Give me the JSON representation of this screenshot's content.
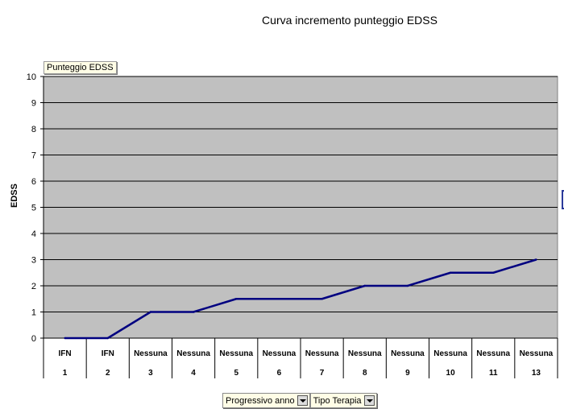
{
  "chart_data": {
    "type": "line",
    "title": "Curva incremento punteggio EDSS",
    "ylabel": "EDSS",
    "ylim": [
      0,
      10
    ],
    "yticks": [
      "0",
      "1",
      "2",
      "3",
      "4",
      "5",
      "6",
      "7",
      "8",
      "9",
      "10"
    ],
    "categories_top": [
      "IFN",
      "IFN",
      "Nessuna",
      "Nessuna",
      "Nessuna",
      "Nessuna",
      "Nessuna",
      "Nessuna",
      "Nessuna",
      "Nessuna",
      "Nessuna",
      "Nessuna"
    ],
    "categories_bottom": [
      "1",
      "2",
      "3",
      "4",
      "5",
      "6",
      "7",
      "8",
      "9",
      "10",
      "11",
      "13"
    ],
    "series": [
      {
        "values": [
          0,
          0,
          1,
          1,
          1.5,
          1.5,
          1.5,
          2,
          2,
          2.5,
          2.5,
          3
        ]
      }
    ],
    "grid": true,
    "plot_bg": "#c0c0c0",
    "line_color": "#000080"
  },
  "field_chip": "Punteggio EDSS",
  "dropdowns": [
    {
      "label": "Progressivo anno"
    },
    {
      "label": "Tipo Terapia"
    }
  ]
}
